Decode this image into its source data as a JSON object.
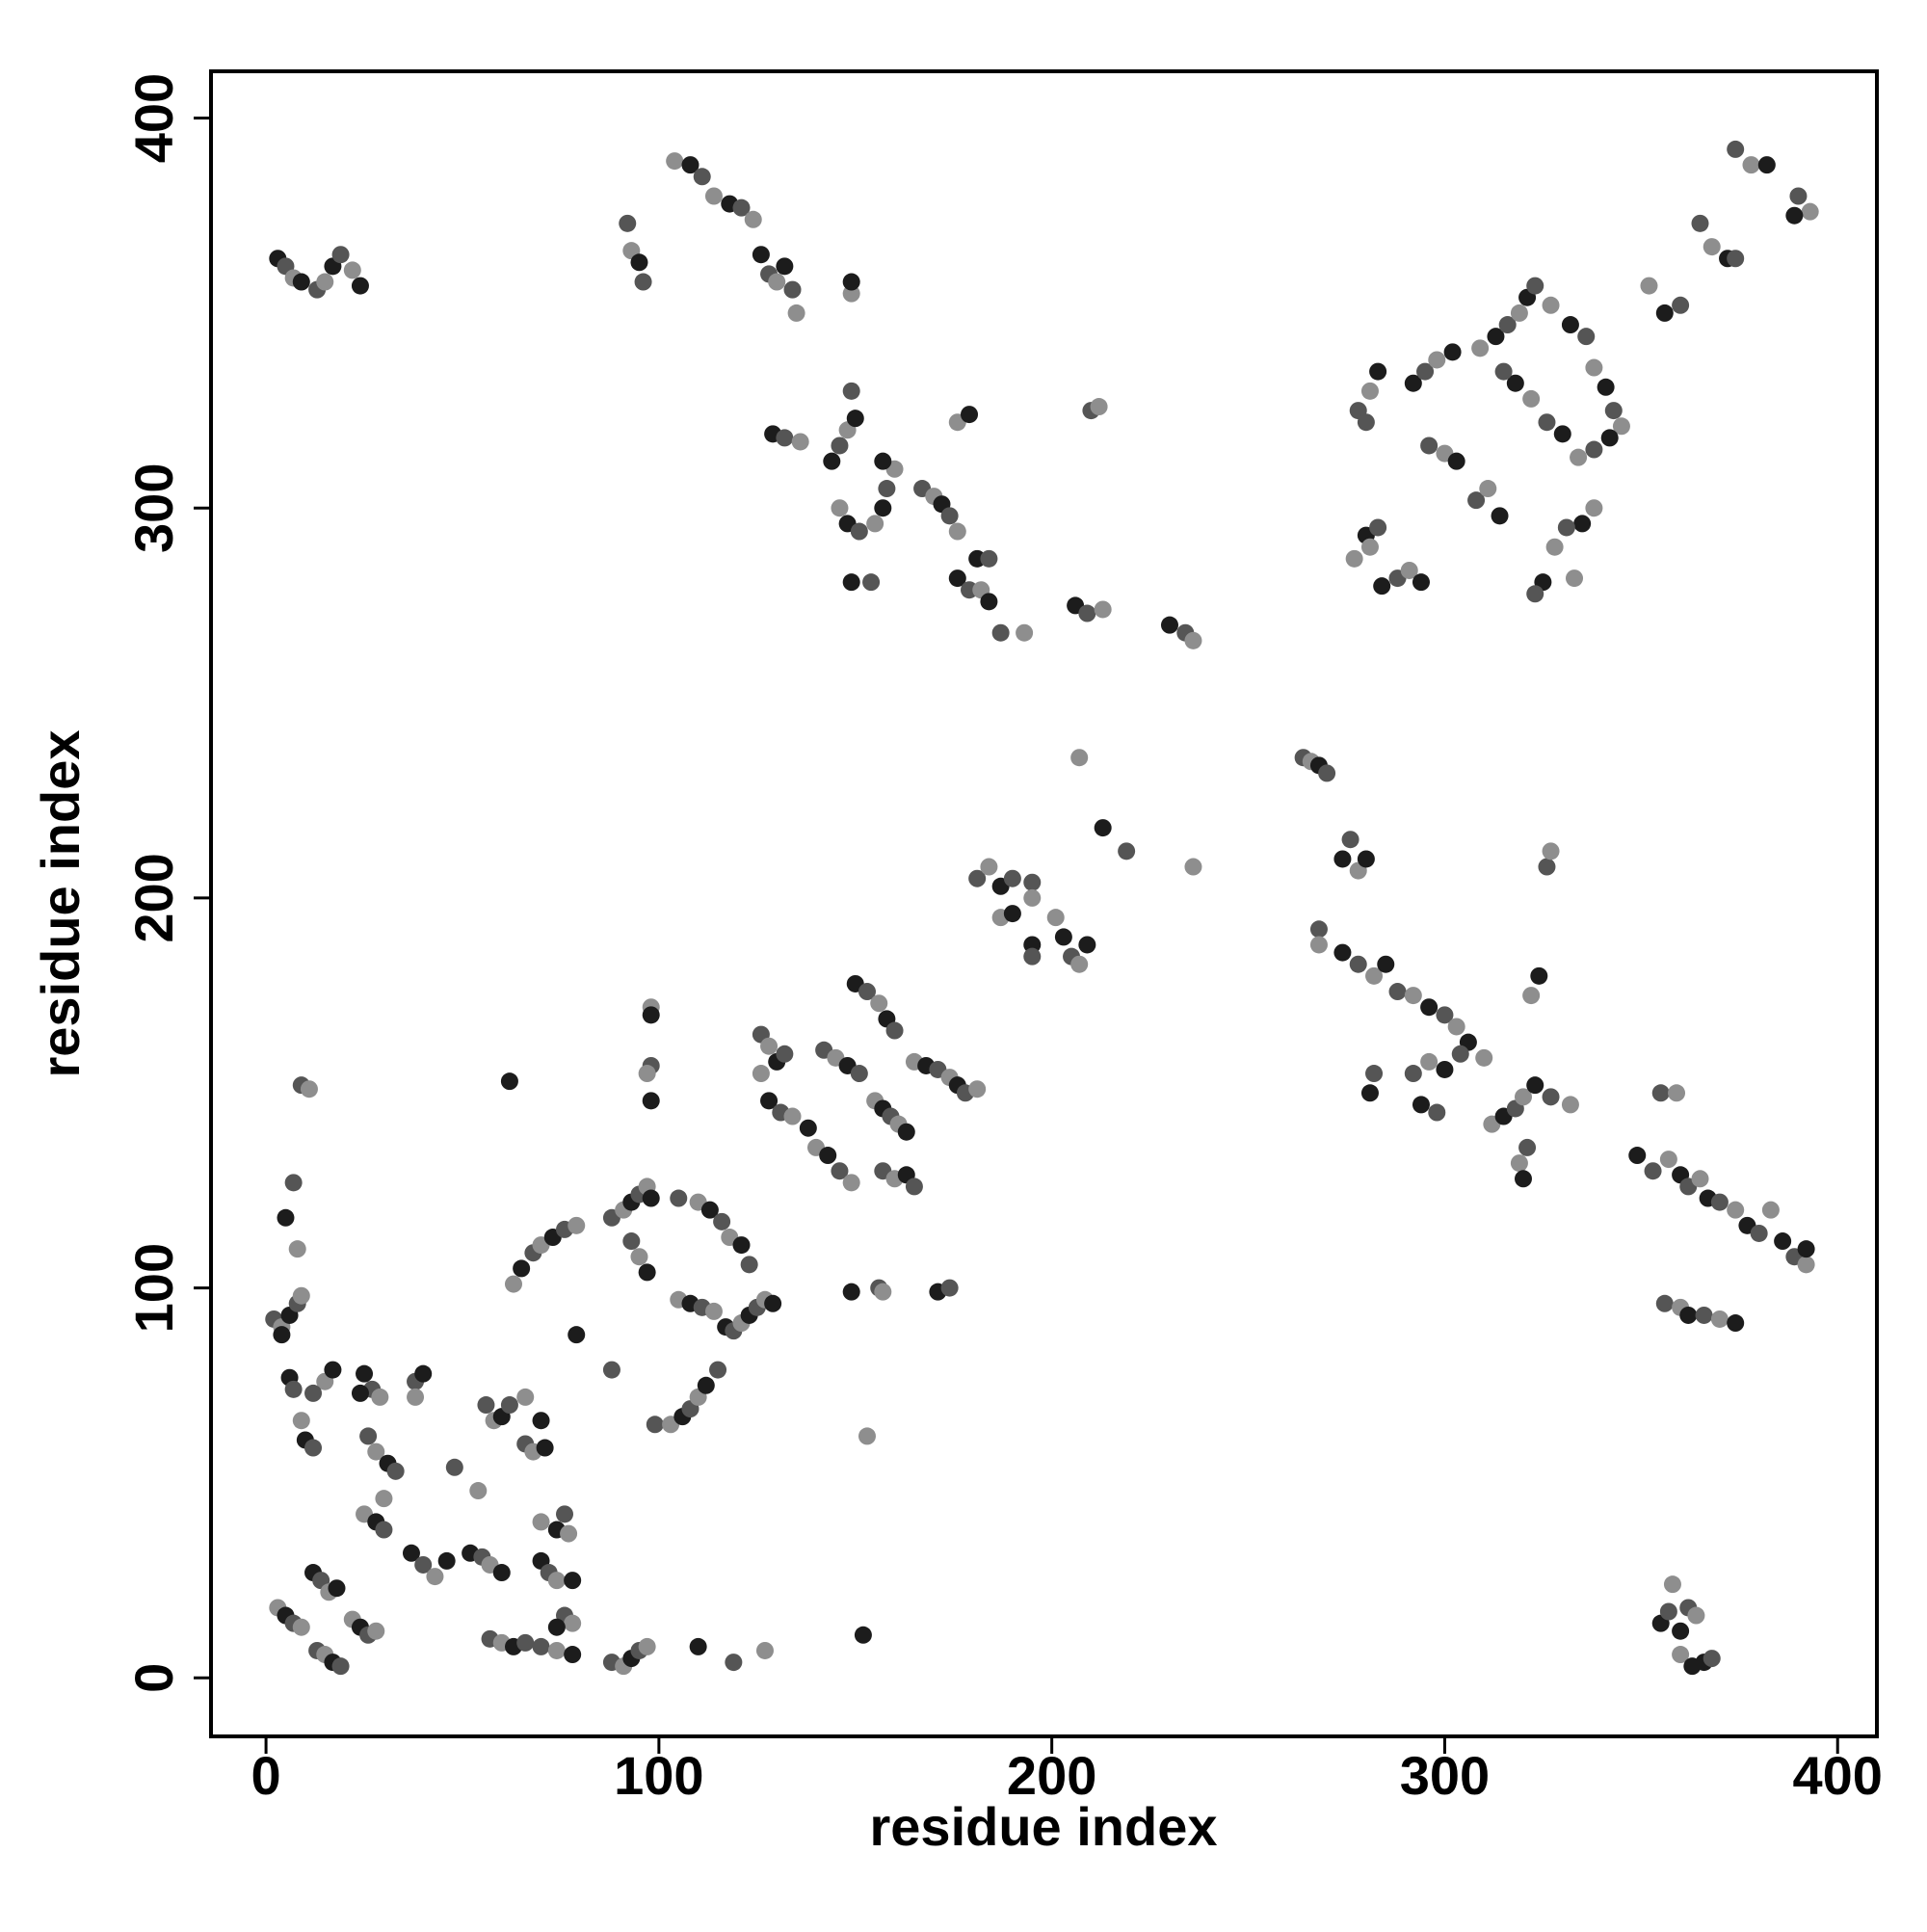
{
  "chart_data": {
    "type": "scatter",
    "xlabel": "residue index",
    "ylabel": "residue index",
    "xlim": [
      -14,
      410
    ],
    "ylim": [
      -15,
      412
    ],
    "xticks": [
      0,
      100,
      200,
      300,
      400
    ],
    "yticks": [
      0,
      100,
      200,
      300,
      400
    ],
    "palette": [
      "#1c1c1c",
      "#555555",
      "#8e8e8e"
    ],
    "x": [
      3,
      5,
      7,
      9,
      13,
      15,
      17,
      19,
      22,
      24,
      92,
      93,
      95,
      96,
      104,
      108,
      111,
      114,
      118,
      121,
      124,
      126,
      128,
      130,
      132,
      134,
      135,
      129,
      132,
      136,
      144,
      146,
      148,
      150,
      149,
      146,
      148,
      151,
      155,
      157,
      158,
      160,
      157,
      167,
      170,
      172,
      174,
      176,
      176,
      179,
      182,
      184,
      187,
      193,
      181,
      184,
      176,
      179,
      210,
      212,
      206,
      209,
      213,
      230,
      234,
      236,
      149,
      154,
      149,
      149,
      374,
      378,
      382,
      390,
      393,
      389,
      365,
      368,
      372,
      374,
      352,
      356,
      360,
      309,
      313,
      316,
      319,
      321,
      323,
      327,
      332,
      336,
      338,
      341,
      343,
      345,
      342,
      338,
      334,
      330,
      326,
      322,
      318,
      315,
      338,
      335,
      331,
      328,
      325,
      323,
      333,
      292,
      295,
      298,
      302,
      296,
      300,
      303,
      308,
      311,
      314,
      278,
      281,
      283,
      280,
      277,
      280,
      283,
      281,
      284,
      288,
      291,
      294,
      264,
      266,
      268,
      270,
      207,
      213,
      219,
      236,
      274,
      276,
      278,
      280,
      268,
      268,
      274,
      278,
      282,
      285,
      288,
      292,
      296,
      300,
      303,
      306,
      292,
      296,
      300,
      304,
      310,
      294,
      298,
      312,
      315,
      318,
      320,
      323,
      327,
      332,
      281,
      282,
      319,
      320,
      321,
      322,
      324,
      326,
      327,
      349,
      353,
      357,
      360,
      362,
      365,
      367,
      370,
      374,
      377,
      380,
      383,
      386,
      389,
      392,
      392,
      356,
      360,
      362,
      366,
      370,
      374,
      355,
      359,
      355,
      357,
      358,
      360,
      362,
      364,
      366,
      368,
      360,
      363,
      2,
      4,
      6,
      8,
      9,
      4,
      9,
      11,
      5,
      7,
      8,
      6,
      7,
      15,
      17,
      12,
      9,
      10,
      12,
      3,
      5,
      7,
      9,
      12,
      14,
      16,
      18,
      13,
      15,
      17,
      19,
      22,
      24,
      26,
      28,
      25,
      27,
      29,
      24,
      26,
      28,
      31,
      33,
      25,
      28,
      30,
      30,
      37,
      40,
      43,
      46,
      38,
      38,
      40,
      48,
      54,
      52,
      55,
      57,
      60,
      56,
      58,
      60,
      62,
      66,
      70,
      66,
      68,
      71,
      57,
      60,
      63,
      66,
      70,
      74,
      76,
      77,
      70,
      72,
      74,
      78,
      76,
      78,
      74,
      70,
      74,
      78,
      88,
      91,
      93,
      95,
      97,
      110,
      119,
      127,
      79,
      88,
      63,
      65,
      68,
      70,
      73,
      76,
      79,
      62,
      88,
      91,
      93,
      95,
      97,
      98,
      93,
      95,
      97,
      99,
      103,
      106,
      108,
      110,
      112,
      115,
      105,
      108,
      111,
      114,
      117,
      119,
      121,
      123,
      125,
      127,
      129,
      105,
      110,
      113,
      116,
      118,
      121,
      123,
      98,
      98,
      98,
      97,
      98,
      126,
      128,
      130,
      132,
      126,
      128,
      131,
      134,
      138,
      142,
      145,
      148,
      151,
      140,
      143,
      146,
      149,
      150,
      153,
      156,
      158,
      160,
      155,
      157,
      159,
      161,
      163,
      157,
      160,
      163,
      165,
      165,
      168,
      171,
      174,
      176,
      178,
      181,
      149,
      156,
      157,
      171,
      174,
      153,
      152,
      181,
      184,
      187,
      190,
      187,
      190,
      195,
      195,
      195,
      195,
      201,
      203,
      205,
      207,
      209
    ],
    "values": [
      364,
      362,
      359,
      358,
      356,
      358,
      362,
      365,
      361,
      357,
      373,
      366,
      363,
      358,
      389,
      388,
      385,
      380,
      378,
      377,
      374,
      365,
      360,
      358,
      362,
      356,
      350,
      319,
      318,
      317,
      312,
      316,
      320,
      323,
      330,
      300,
      296,
      294,
      296,
      300,
      305,
      310,
      312,
      305,
      303,
      301,
      298,
      294,
      282,
      279,
      279,
      276,
      268,
      268,
      287,
      287,
      322,
      324,
      325,
      326,
      275,
      273,
      274,
      270,
      268,
      266,
      281,
      281,
      355,
      358,
      392,
      388,
      388,
      380,
      376,
      375,
      373,
      367,
      364,
      364,
      357,
      350,
      352,
      341,
      344,
      347,
      350,
      354,
      357,
      352,
      347,
      344,
      336,
      331,
      325,
      321,
      318,
      315,
      313,
      319,
      322,
      328,
      332,
      335,
      300,
      296,
      295,
      290,
      281,
      278,
      282,
      332,
      335,
      338,
      340,
      316,
      314,
      312,
      302,
      305,
      298,
      325,
      330,
      335,
      322,
      287,
      293,
      295,
      290,
      280,
      282,
      284,
      281,
      236,
      235,
      234,
      232,
      236,
      218,
      212,
      208,
      210,
      215,
      207,
      210,
      192,
      188,
      186,
      183,
      180,
      183,
      176,
      175,
      172,
      170,
      167,
      163,
      155,
      158,
      156,
      160,
      159,
      147,
      145,
      142,
      144,
      146,
      149,
      152,
      149,
      147,
      150,
      155,
      132,
      128,
      136,
      175,
      180,
      208,
      212,
      134,
      130,
      133,
      129,
      126,
      128,
      123,
      122,
      120,
      116,
      114,
      120,
      112,
      108,
      106,
      110,
      96,
      95,
      93,
      93,
      92,
      91,
      150,
      150,
      14,
      17,
      24,
      12,
      18,
      16,
      4,
      5,
      6,
      3,
      92,
      90,
      93,
      96,
      98,
      88,
      152,
      151,
      118,
      127,
      110,
      77,
      74,
      76,
      79,
      73,
      66,
      61,
      59,
      18,
      16,
      14,
      13,
      27,
      25,
      22,
      23,
      7,
      6,
      4,
      3,
      15,
      13,
      11,
      12,
      78,
      74,
      72,
      73,
      62,
      58,
      55,
      53,
      42,
      40,
      38,
      46,
      32,
      29,
      26,
      30,
      76,
      72,
      78,
      54,
      48,
      32,
      31,
      29,
      27,
      70,
      66,
      67,
      70,
      72,
      66,
      60,
      58,
      59,
      10,
      9,
      8,
      9,
      40,
      38,
      42,
      37,
      30,
      27,
      25,
      25,
      16,
      14,
      13,
      8,
      7,
      6,
      4,
      3,
      5,
      7,
      8,
      8,
      4,
      7,
      88,
      79,
      101,
      105,
      109,
      111,
      113,
      115,
      116,
      153,
      118,
      120,
      122,
      124,
      126,
      123,
      112,
      108,
      104,
      65,
      65,
      67,
      69,
      72,
      75,
      79,
      97,
      96,
      95,
      94,
      90,
      89,
      91,
      93,
      95,
      97,
      96,
      123,
      122,
      120,
      117,
      113,
      111,
      106,
      172,
      170,
      157,
      155,
      148,
      165,
      162,
      158,
      160,
      155,
      148,
      145,
      144,
      141,
      161,
      159,
      157,
      155,
      136,
      134,
      130,
      127,
      178,
      176,
      173,
      169,
      166,
      148,
      146,
      144,
      142,
      140,
      130,
      128,
      129,
      126,
      158,
      157,
      156,
      154,
      152,
      150,
      151,
      99,
      100,
      99,
      99,
      100,
      62,
      11,
      205,
      208,
      203,
      205,
      195,
      196,
      204,
      200,
      188,
      185,
      195,
      190,
      185,
      183,
      188
    ]
  }
}
